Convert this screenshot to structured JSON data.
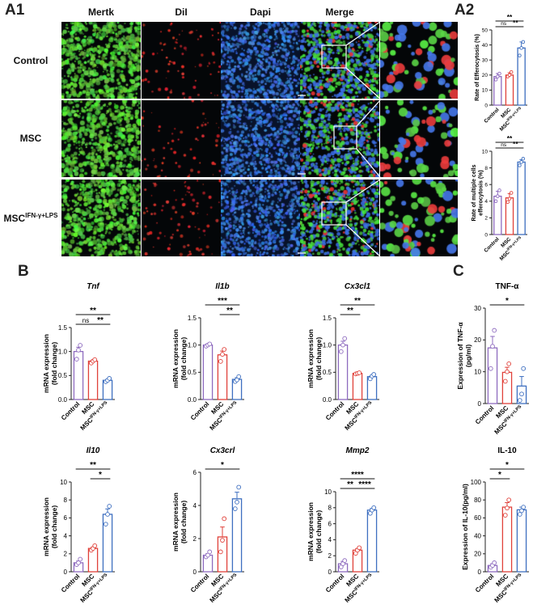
{
  "panels": {
    "a1": "A1",
    "a2": "A2",
    "b": "B",
    "c": "C"
  },
  "micrographs": {
    "columns": [
      "Mertk",
      "DiI",
      "Dapi",
      "Merge"
    ],
    "rows": [
      "Control",
      "MSC",
      "MSC"
    ],
    "row3_superscript": "IFN-γ+LPS"
  },
  "colors": {
    "control": "#8e6bbf",
    "msc": "#e0413a",
    "msc_ifn": "#3e6fc0"
  },
  "group_labels": {
    "control": "Control",
    "msc": "MSC",
    "msc_ifn_base": "MSC",
    "msc_ifn_sup": "IFN-γ+LPS"
  },
  "chart_data": [
    {
      "id": "a2_1",
      "type": "bar",
      "title": "",
      "ylabel": "Rate of Efferocytosis (%)",
      "ylim": [
        0,
        50
      ],
      "yticks": [
        0,
        10,
        20,
        30,
        40,
        50
      ],
      "categories": [
        "Control",
        "MSC",
        "MSC IFN-γ+LPS"
      ],
      "values": [
        19,
        20,
        38
      ],
      "points": [
        [
          17,
          19,
          21
        ],
        [
          19,
          20,
          22
        ],
        [
          33,
          38,
          42
        ]
      ],
      "sem": [
        2,
        1.5,
        4
      ],
      "brackets": [
        {
          "from": 0,
          "to": 1,
          "label": "ns"
        },
        {
          "from": 1,
          "to": 2,
          "label": "**"
        },
        {
          "from": 0,
          "to": 2,
          "label": "**"
        }
      ]
    },
    {
      "id": "a2_2",
      "type": "bar",
      "title": "",
      "ylabel": "Rate of multiple cells efferocytosis (%)",
      "ylim": [
        0,
        10
      ],
      "yticks": [
        0,
        2,
        4,
        6,
        8,
        10
      ],
      "categories": [
        "Control",
        "MSC",
        "MSC IFN-γ+LPS"
      ],
      "values": [
        4.6,
        4.4,
        8.7
      ],
      "points": [
        [
          4.0,
          4.6,
          5.3
        ],
        [
          3.9,
          4.3,
          5.0
        ],
        [
          8.3,
          8.7,
          9.1
        ]
      ],
      "sem": [
        0.6,
        0.5,
        0.3
      ],
      "brackets": [
        {
          "from": 0,
          "to": 1,
          "label": "ns"
        },
        {
          "from": 1,
          "to": 2,
          "label": "**"
        },
        {
          "from": 0,
          "to": 2,
          "label": "**"
        }
      ]
    },
    {
      "id": "b_tnf",
      "type": "bar",
      "title": "Tnf",
      "ylabel": "mRNA expression (fold change)",
      "ylim": [
        0,
        1.5
      ],
      "yticks": [
        0.0,
        0.5,
        1.0,
        1.5
      ],
      "categories": [
        "Control",
        "MSC",
        "MSC IFN-γ+LPS"
      ],
      "values": [
        1.0,
        0.8,
        0.4
      ],
      "points": [
        [
          0.84,
          1.03,
          1.13
        ],
        [
          0.76,
          0.8,
          0.83
        ],
        [
          0.37,
          0.4,
          0.44
        ]
      ],
      "sem": [
        0.09,
        0.02,
        0.02
      ],
      "brackets": [
        {
          "from": 0,
          "to": 1,
          "label": "ns"
        },
        {
          "from": 1,
          "to": 2,
          "label": "**"
        },
        {
          "from": 0,
          "to": 2,
          "label": "**"
        }
      ]
    },
    {
      "id": "b_il1b",
      "type": "bar",
      "title": "Il1b",
      "ylabel": "mRNA expression (fold change)",
      "ylim": [
        0,
        1.5
      ],
      "yticks": [
        0.0,
        0.5,
        1.0,
        1.5
      ],
      "categories": [
        "Control",
        "MSC",
        "MSC IFN-γ+LPS"
      ],
      "values": [
        1.0,
        0.82,
        0.37
      ],
      "points": [
        [
          0.98,
          1.0,
          1.02
        ],
        [
          0.7,
          0.83,
          0.92
        ],
        [
          0.33,
          0.36,
          0.42
        ]
      ],
      "sem": [
        0.02,
        0.07,
        0.03
      ],
      "brackets": [
        {
          "from": 1,
          "to": 2,
          "label": "**"
        },
        {
          "from": 0,
          "to": 2,
          "label": "***"
        }
      ]
    },
    {
      "id": "b_cx3cl1",
      "type": "bar",
      "title": "Cx3cl1",
      "ylabel": "mRNA expression (fold change)",
      "ylim": [
        0,
        1.5
      ],
      "yticks": [
        0.0,
        0.5,
        1.0,
        1.5
      ],
      "categories": [
        "Control",
        "MSC",
        "MSC IFN-γ+LPS"
      ],
      "values": [
        1.0,
        0.48,
        0.42
      ],
      "points": [
        [
          0.88,
          1.0,
          1.12
        ],
        [
          0.47,
          0.48,
          0.49
        ],
        [
          0.38,
          0.43,
          0.46
        ]
      ],
      "sem": [
        0.07,
        0.01,
        0.02
      ],
      "brackets": [
        {
          "from": 0,
          "to": 1,
          "label": "**"
        },
        {
          "from": 0,
          "to": 2,
          "label": "**"
        }
      ]
    },
    {
      "id": "b_il10",
      "type": "bar",
      "title": "Il10",
      "ylabel": "mRNA expression (fold change)",
      "ylim": [
        0,
        10
      ],
      "yticks": [
        0,
        2,
        4,
        6,
        8,
        10
      ],
      "categories": [
        "Control",
        "MSC",
        "MSC IFN-γ+LPS"
      ],
      "values": [
        1.0,
        2.6,
        6.4
      ],
      "points": [
        [
          0.8,
          1.0,
          1.4
        ],
        [
          2.4,
          2.6,
          2.9
        ],
        [
          5.3,
          6.4,
          7.3
        ]
      ],
      "sem": [
        0.2,
        0.15,
        0.6
      ],
      "brackets": [
        {
          "from": 1,
          "to": 2,
          "label": "*"
        },
        {
          "from": 0,
          "to": 2,
          "label": "**"
        }
      ]
    },
    {
      "id": "b_cx3crl",
      "type": "bar",
      "title": "Cx3crl",
      "ylabel": "mRNA expression (fold change)",
      "ylim": [
        0,
        6
      ],
      "yticks": [
        0,
        2,
        4,
        6
      ],
      "categories": [
        "Control",
        "MSC",
        "MSC IFN-γ+LPS"
      ],
      "values": [
        1.0,
        2.1,
        4.4
      ],
      "points": [
        [
          0.9,
          1.0,
          1.2
        ],
        [
          1.2,
          1.9,
          3.2
        ],
        [
          3.8,
          4.2,
          5.1
        ]
      ],
      "sem": [
        0.1,
        0.6,
        0.4
      ],
      "brackets": [
        {
          "from": 0,
          "to": 2,
          "label": "*"
        }
      ]
    },
    {
      "id": "b_mmp2",
      "type": "bar",
      "title": "Mmp2",
      "ylabel": "mRNA expression (fold change)",
      "ylim": [
        0,
        10
      ],
      "yticks": [
        0,
        2,
        4,
        6,
        8,
        10
      ],
      "categories": [
        "Control",
        "MSC",
        "MSC IFN-γ+LPS"
      ],
      "values": [
        1.0,
        2.7,
        7.7
      ],
      "points": [
        [
          0.6,
          1.0,
          1.4
        ],
        [
          2.3,
          2.7,
          3.0
        ],
        [
          7.3,
          7.7,
          8.0
        ]
      ],
      "sem": [
        0.3,
        0.2,
        0.2
      ],
      "brackets": [
        {
          "from": 0,
          "to": 1,
          "label": "**"
        },
        {
          "from": 1,
          "to": 2,
          "label": "****"
        },
        {
          "from": 0,
          "to": 2,
          "label": "****"
        }
      ]
    },
    {
      "id": "c_tnf",
      "type": "bar",
      "title": "TNF-α",
      "ylabel": "Expression of TNF-α (pg/ml)",
      "ylim": [
        0,
        30
      ],
      "yticks": [
        0,
        10,
        20,
        30
      ],
      "categories": [
        "Control",
        "MSC",
        "MSC IFN-γ+LPS"
      ],
      "values": [
        17.5,
        9.8,
        5.5
      ],
      "points": [
        [
          11,
          18,
          23
        ],
        [
          7,
          10,
          12.5
        ],
        [
          1,
          3,
          11
        ]
      ],
      "sem": [
        3.6,
        1.6,
        3.0
      ],
      "brackets": [
        {
          "from": 0,
          "to": 2,
          "label": "*"
        }
      ]
    },
    {
      "id": "c_il10",
      "type": "bar",
      "title": "IL-10",
      "ylabel": "Expression of IL-10(pg/ml)",
      "ylim": [
        0,
        100
      ],
      "yticks": [
        0,
        20,
        40,
        60,
        80,
        100
      ],
      "categories": [
        "Control",
        "MSC",
        "MSC IFN-γ+LPS"
      ],
      "values": [
        7,
        72,
        69
      ],
      "points": [
        [
          5,
          7,
          10
        ],
        [
          63,
          71,
          80
        ],
        [
          64,
          68,
          72
        ]
      ],
      "sem": [
        2,
        5,
        3
      ],
      "brackets": [
        {
          "from": 0,
          "to": 1,
          "label": "*"
        },
        {
          "from": 0,
          "to": 2,
          "label": "*"
        }
      ]
    }
  ]
}
